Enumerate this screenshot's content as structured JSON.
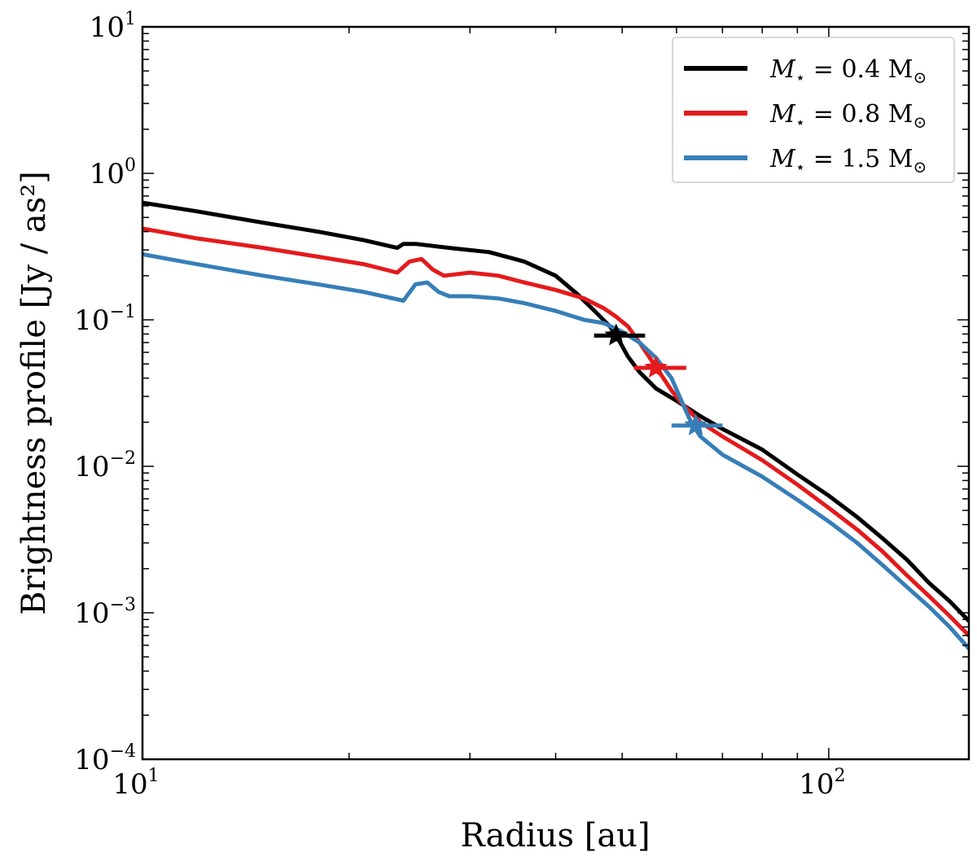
{
  "chart_data": {
    "type": "line",
    "xlabel": "Radius [au]",
    "ylabel": "Brightness profile [Jy / as²]",
    "xscale": "log",
    "yscale": "log",
    "xlim": [
      10,
      160
    ],
    "ylim": [
      0.0001,
      10
    ],
    "grid": false,
    "legend_position": "top-right",
    "x_ticks": [
      {
        "value": 10,
        "base": "10",
        "exp": "1"
      },
      {
        "value": 100,
        "base": "10",
        "exp": "2"
      }
    ],
    "y_ticks": [
      {
        "value": 10,
        "base": "10",
        "exp": "1"
      },
      {
        "value": 1,
        "base": "10",
        "exp": "0"
      },
      {
        "value": 0.1,
        "base": "10",
        "exp": "−1"
      },
      {
        "value": 0.01,
        "base": "10",
        "exp": "−2"
      },
      {
        "value": 0.001,
        "base": "10",
        "exp": "−3"
      },
      {
        "value": 0.0001,
        "base": "10",
        "exp": "−4"
      }
    ],
    "series": [
      {
        "name": "M⋆ = 0.4 M⊙",
        "color": "#000000",
        "x": [
          10,
          12,
          15,
          18,
          21,
          23.5,
          24,
          25,
          28,
          32,
          36,
          40,
          43,
          46,
          48,
          49.5,
          51,
          53,
          56,
          60,
          65,
          70,
          80,
          90,
          100,
          110,
          120,
          130,
          140,
          150,
          160
        ],
        "y": [
          0.63,
          0.55,
          0.46,
          0.4,
          0.35,
          0.31,
          0.33,
          0.33,
          0.31,
          0.29,
          0.25,
          0.2,
          0.15,
          0.11,
          0.09,
          0.072,
          0.056,
          0.044,
          0.034,
          0.028,
          0.022,
          0.018,
          0.013,
          0.0088,
          0.0063,
          0.0045,
          0.0032,
          0.0023,
          0.0016,
          0.0012,
          0.00088
        ]
      },
      {
        "name": "M⋆ = 0.8 M⊙",
        "color": "#e41a1c",
        "x": [
          10,
          12,
          15,
          18,
          21,
          23.5,
          24.5,
          25.5,
          26.5,
          27.5,
          30,
          33,
          36,
          40,
          44,
          47,
          49,
          51,
          53,
          55,
          57,
          59,
          61,
          65,
          70,
          80,
          90,
          100,
          110,
          120,
          130,
          140,
          150,
          160
        ],
        "y": [
          0.42,
          0.36,
          0.31,
          0.27,
          0.24,
          0.21,
          0.25,
          0.26,
          0.22,
          0.2,
          0.21,
          0.2,
          0.18,
          0.16,
          0.14,
          0.12,
          0.105,
          0.09,
          0.07,
          0.054,
          0.042,
          0.033,
          0.027,
          0.02,
          0.016,
          0.011,
          0.0075,
          0.0052,
          0.0037,
          0.0026,
          0.0018,
          0.0013,
          0.00095,
          0.0007
        ]
      },
      {
        "name": "M⋆ = 1.5 M⊙",
        "color": "#377eb8",
        "x": [
          10,
          12,
          15,
          18,
          21,
          24,
          25,
          26,
          27,
          28,
          30,
          33,
          36,
          40,
          44,
          47,
          50,
          53,
          56,
          59,
          61,
          63,
          65,
          70,
          80,
          90,
          100,
          110,
          120,
          130,
          140,
          150,
          160
        ],
        "y": [
          0.28,
          0.24,
          0.2,
          0.175,
          0.155,
          0.135,
          0.175,
          0.18,
          0.155,
          0.145,
          0.145,
          0.14,
          0.13,
          0.115,
          0.1,
          0.095,
          0.083,
          0.07,
          0.055,
          0.04,
          0.028,
          0.02,
          0.016,
          0.012,
          0.0085,
          0.0059,
          0.0042,
          0.003,
          0.0021,
          0.0015,
          0.0011,
          0.0008,
          0.00057
        ]
      }
    ],
    "markers": [
      {
        "name": "M⋆ = 0.4 M⊙",
        "color": "#000000",
        "x": 49,
        "y": 0.078,
        "xerr": [
          45.5,
          54
        ]
      },
      {
        "name": "M⋆ = 0.8 M⊙",
        "color": "#e41a1c",
        "x": 56,
        "y": 0.047,
        "xerr": [
          52,
          62
        ]
      },
      {
        "name": "M⋆ = 1.5 M⊙",
        "color": "#377eb8",
        "x": 64,
        "y": 0.019,
        "xerr": [
          59,
          70
        ]
      }
    ]
  },
  "legend": {
    "entries": [
      {
        "prefix": "M",
        "sub": "⋆",
        "rest": " = 0.4 M",
        "rest_sub": "⊙",
        "color": "#000000"
      },
      {
        "prefix": "M",
        "sub": "⋆",
        "rest": " = 0.8 M",
        "rest_sub": "⊙",
        "color": "#e41a1c"
      },
      {
        "prefix": "M",
        "sub": "⋆",
        "rest": " = 1.5 M",
        "rest_sub": "⊙",
        "color": "#377eb8"
      }
    ]
  }
}
